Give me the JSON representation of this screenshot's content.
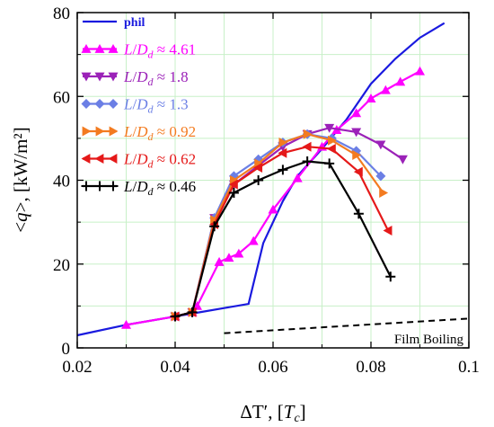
{
  "chart_data": {
    "type": "line",
    "xlabel": "ΔT′, [Tc]",
    "xlabel_parts": {
      "main": "ΔT′, [",
      "sym": "T",
      "sub": "c",
      "end": "]"
    },
    "ylabel": "<q>, [kW/m²]",
    "ylabel_parts": {
      "main": "<",
      "sym": "q",
      "end": ">, [kW/m²]"
    },
    "xlim": [
      0.02,
      0.1
    ],
    "ylim": [
      0,
      80
    ],
    "x_ticks": [
      0.02,
      0.04,
      0.06,
      0.08,
      0.1
    ],
    "x_tick_labels": [
      "0.02",
      "0.04",
      "0.06",
      "0.08",
      "0.1"
    ],
    "y_ticks": [
      0,
      20,
      40,
      60,
      80
    ],
    "y_tick_labels": [
      "0",
      "20",
      "40",
      "60",
      "80"
    ],
    "grid": true,
    "grid_color": "#c8f0c8",
    "legend_position": "top-left",
    "annotation": {
      "text": "Film Boiling",
      "line_x": [
        0.05,
        0.1
      ],
      "line_y": [
        3.5,
        7
      ]
    },
    "series": [
      {
        "name": "phil",
        "label_plain": "phil",
        "color": "#1a1adf",
        "marker": "none",
        "x": [
          0.02,
          0.03,
          0.04,
          0.045,
          0.05,
          0.055,
          0.058,
          0.062,
          0.065,
          0.07,
          0.075,
          0.08,
          0.085,
          0.09,
          0.095
        ],
        "y": [
          3,
          5.5,
          7.5,
          8.5,
          9.5,
          10.5,
          25,
          35,
          41,
          47.5,
          54.5,
          63,
          69,
          74,
          77.5
        ]
      },
      {
        "name": "L/Dd ≈ 4.61",
        "label_plain": "≈ 4.61",
        "color": "#ff00ff",
        "marker": "triangle-up",
        "x": [
          0.03,
          0.04,
          0.0435,
          0.0445,
          0.049,
          0.051,
          0.053,
          0.056,
          0.06,
          0.065,
          0.07,
          0.073,
          0.077,
          0.08,
          0.083,
          0.086,
          0.09
        ],
        "y": [
          5.5,
          7.5,
          8.5,
          10,
          20.5,
          21.5,
          22.5,
          25.5,
          33,
          40.5,
          48,
          52,
          56,
          59.5,
          61.5,
          63.5,
          66
        ]
      },
      {
        "name": "L/Dd ≈ 1.8",
        "label_plain": "≈ 1.8",
        "color": "#9b22b8",
        "marker": "triangle-down",
        "x": [
          0.04,
          0.0435,
          0.048,
          0.052,
          0.057,
          0.062,
          0.067,
          0.0715,
          0.077,
          0.082,
          0.0865
        ],
        "y": [
          7.5,
          8.5,
          31,
          39,
          43.5,
          48,
          51,
          52.5,
          51.5,
          48.5,
          45
        ]
      },
      {
        "name": "L/Dd ≈ 1.3",
        "label_plain": "≈ 1.3",
        "color": "#6b7fe5",
        "marker": "diamond",
        "x": [
          0.04,
          0.0435,
          0.048,
          0.052,
          0.057,
          0.062,
          0.067,
          0.072,
          0.077,
          0.082
        ],
        "y": [
          7.5,
          8.5,
          31,
          41,
          45,
          49,
          51,
          50,
          47,
          41
        ]
      },
      {
        "name": "L/Dd ≈ 0.92",
        "label_plain": "≈ 0.92",
        "color": "#f37b20",
        "marker": "triangle-right",
        "x": [
          0.04,
          0.0435,
          0.048,
          0.052,
          0.057,
          0.062,
          0.067,
          0.072,
          0.077,
          0.0825
        ],
        "y": [
          7.5,
          8.5,
          30.5,
          40,
          44,
          49,
          51,
          49.5,
          46,
          37
        ]
      },
      {
        "name": "L/Dd ≈ 0.62",
        "label_plain": "≈ 0.62",
        "color": "#e51919",
        "marker": "triangle-left",
        "x": [
          0.04,
          0.0435,
          0.048,
          0.052,
          0.057,
          0.062,
          0.067,
          0.072,
          0.0775,
          0.0835
        ],
        "y": [
          7.5,
          8.5,
          29.5,
          39,
          43,
          46.5,
          48,
          47.5,
          42,
          28
        ]
      },
      {
        "name": "L/Dd ≈ 0.46",
        "label_plain": "≈ 0.46",
        "color": "#000000",
        "marker": "plus",
        "x": [
          0.04,
          0.0435,
          0.048,
          0.052,
          0.057,
          0.062,
          0.067,
          0.0715,
          0.0775,
          0.084
        ],
        "y": [
          7.5,
          8.5,
          29,
          37,
          40,
          42.5,
          44.5,
          44,
          32,
          17
        ]
      }
    ]
  }
}
